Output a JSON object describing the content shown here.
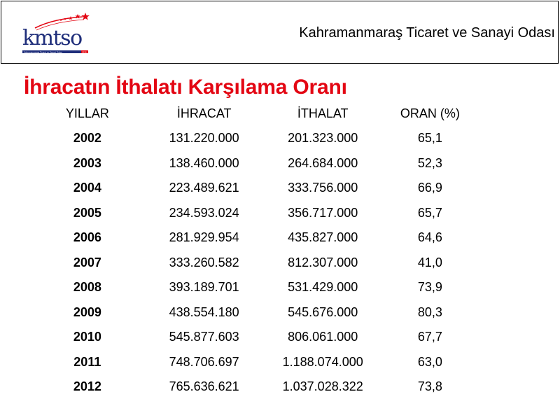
{
  "header": {
    "logo_text": "kmtso",
    "logo_subtitle": "Kahramanmaraş Ticaret ve Sanayi Odası",
    "logo_year": "1936",
    "org_name": "Kahramanmaraş Ticaret ve Sanayi Odası",
    "accent_color": "#e30613",
    "logo_color": "#1e2d7a"
  },
  "title": "İhracatın İthalatı Karşılama Oranı",
  "table": {
    "headers": [
      "YILLAR",
      "İHRACAT",
      "İTHALAT",
      "ORAN (%)"
    ],
    "rows": [
      {
        "year": "2002",
        "export": "131.220.000",
        "import": "201.323.000",
        "ratio": "65,1"
      },
      {
        "year": "2003",
        "export": "138.460.000",
        "import": "264.684.000",
        "ratio": "52,3"
      },
      {
        "year": "2004",
        "export": "223.489.621",
        "import": "333.756.000",
        "ratio": "66,9"
      },
      {
        "year": "2005",
        "export": "234.593.024",
        "import": "356.717.000",
        "ratio": "65,7"
      },
      {
        "year": "2006",
        "export": "281.929.954",
        "import": "435.827.000",
        "ratio": "64,6"
      },
      {
        "year": "2007",
        "export": "333.260.582",
        "import": "812.307.000",
        "ratio": "41,0"
      },
      {
        "year": "2008",
        "export": "393.189.701",
        "import": "531.429.000",
        "ratio": "73,9"
      },
      {
        "year": "2009",
        "export": "438.554.180",
        "import": "545.676.000",
        "ratio": "80,3"
      },
      {
        "year": "2010",
        "export": "545.877.603",
        "import": "806.061.000",
        "ratio": "67,7"
      },
      {
        "year": "2011",
        "export": "748.706.697",
        "import": "1.188.074.000",
        "ratio": "63,0"
      },
      {
        "year": "2012",
        "export": "765.636.621",
        "import": "1.037.028.322",
        "ratio": "73,8"
      }
    ]
  }
}
